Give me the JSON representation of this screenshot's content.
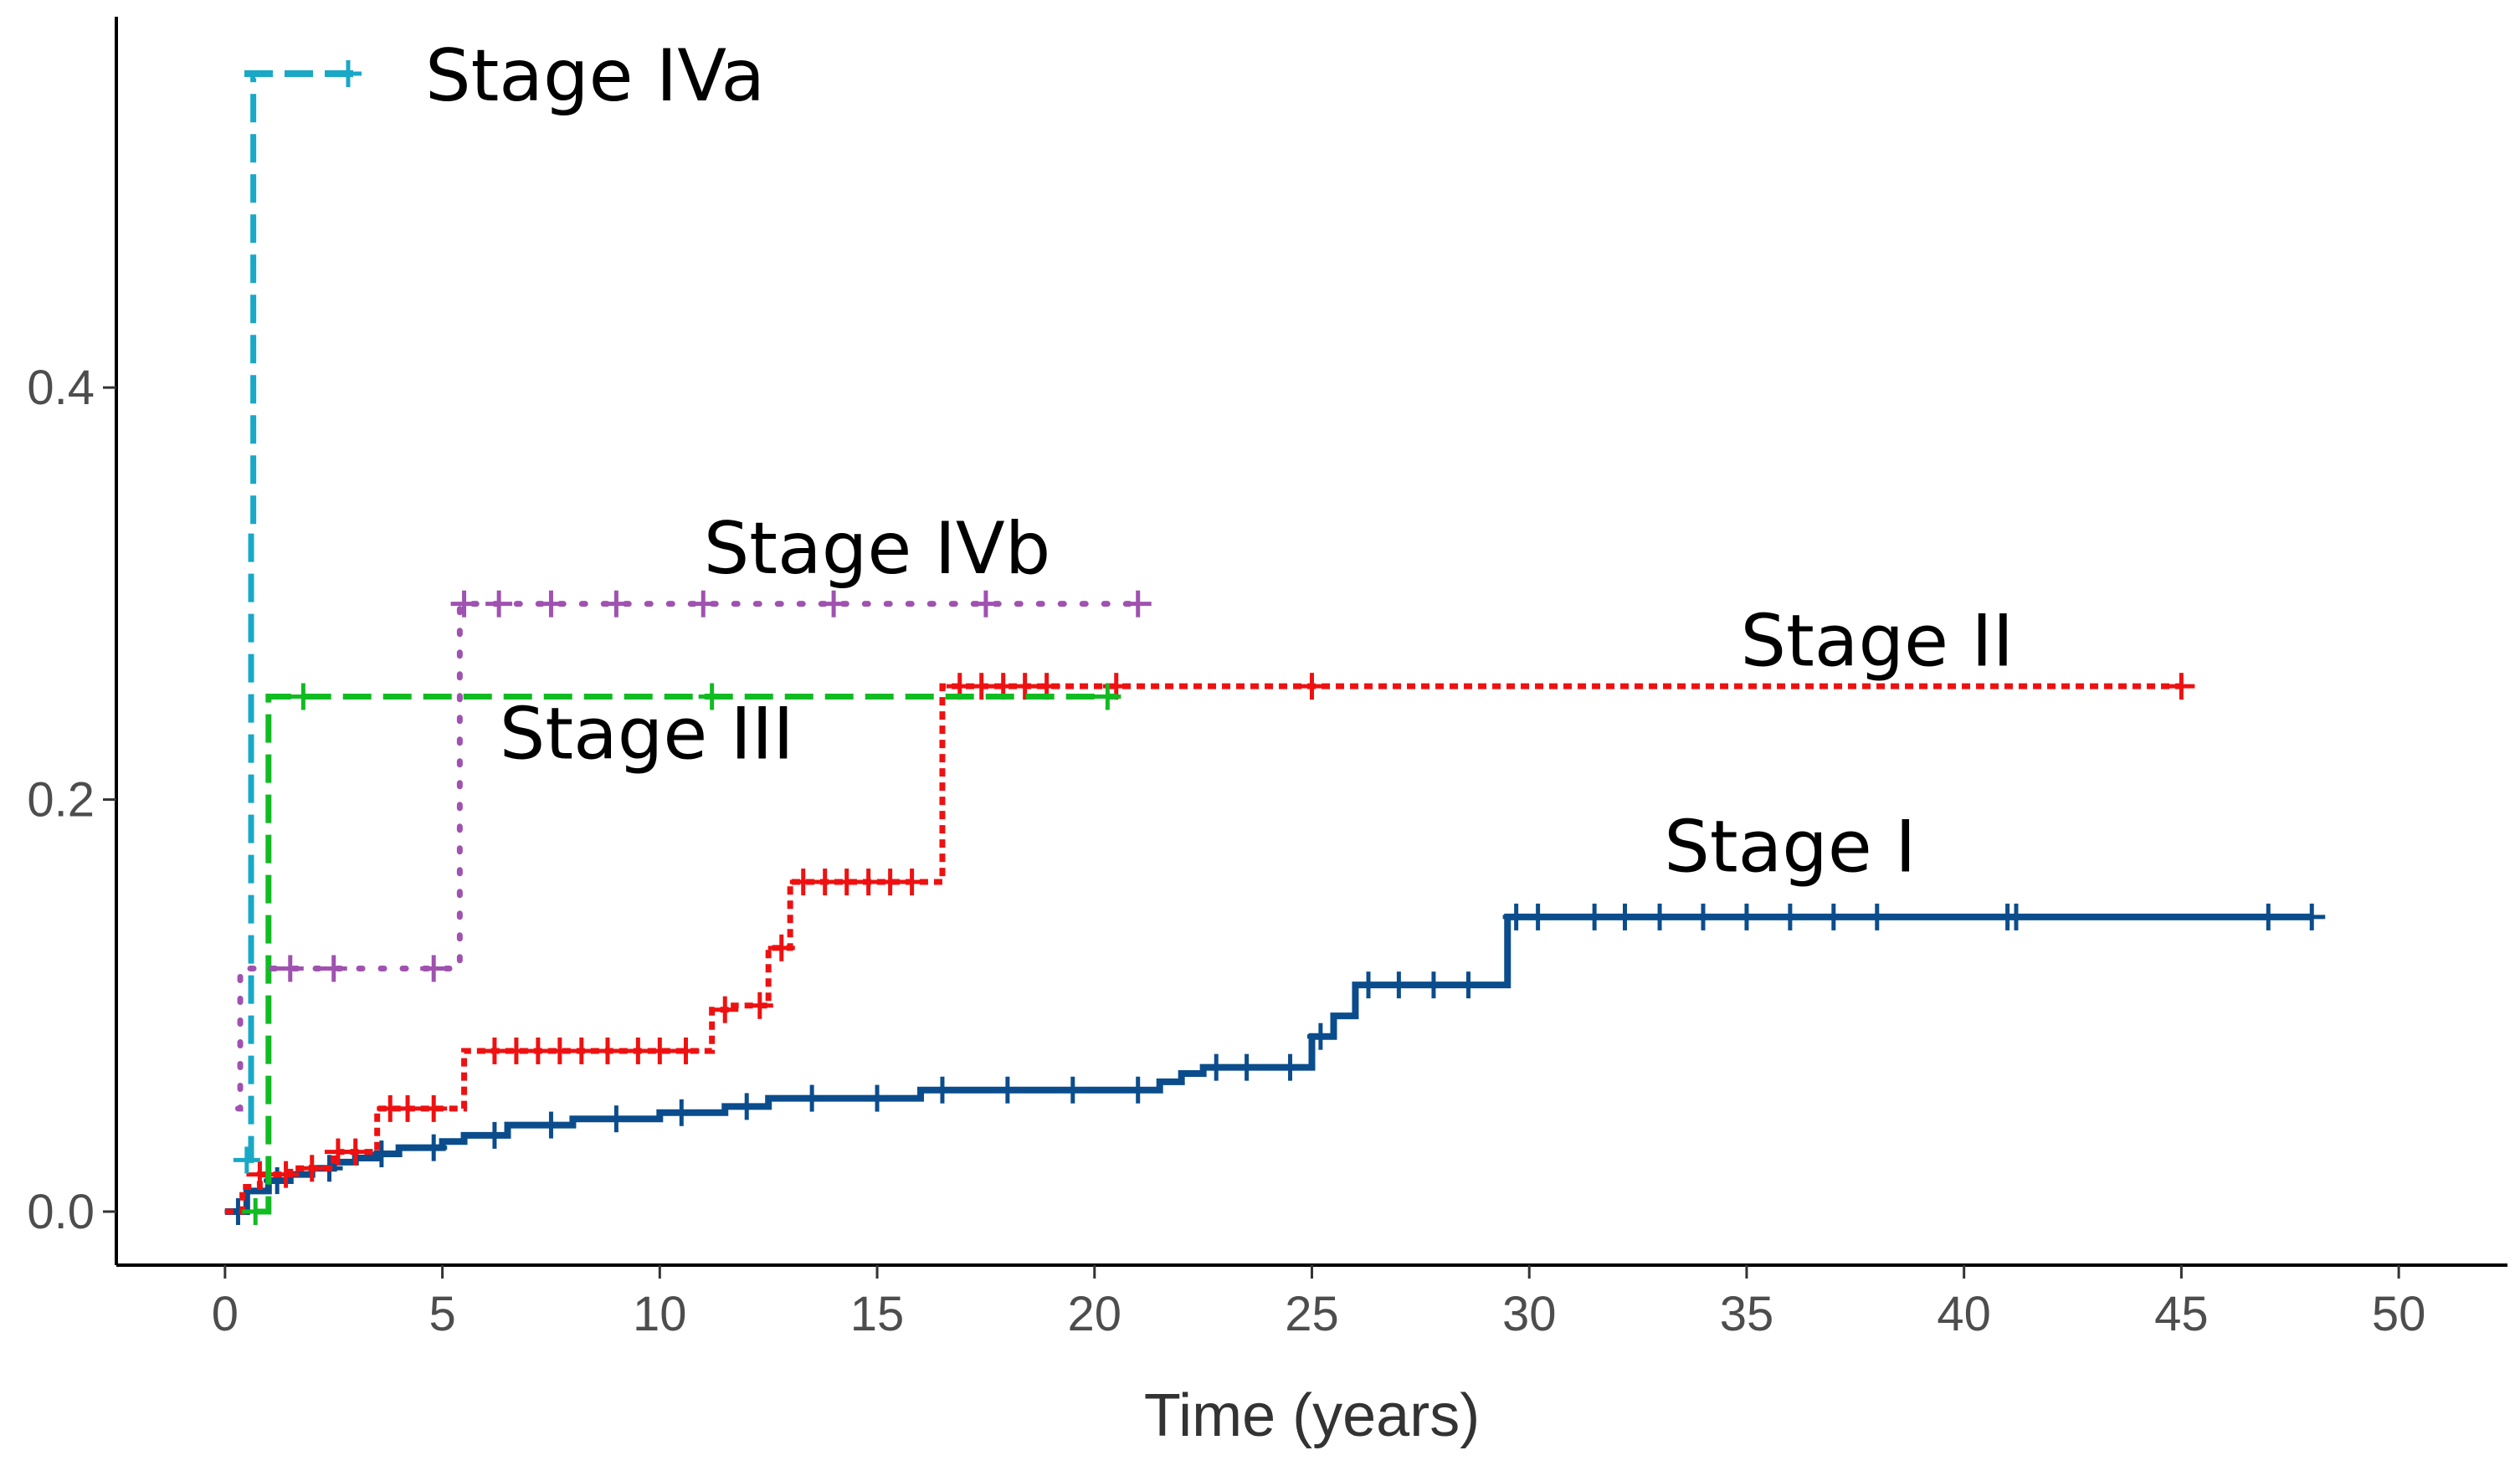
{
  "chart_data": {
    "type": "line",
    "title": "",
    "xlabel": "Time (years)",
    "ylabel": "",
    "xlim": [
      -2.5,
      52.5
    ],
    "ylim": [
      -0.026,
      0.58
    ],
    "xticks": [
      0,
      5,
      10,
      15,
      20,
      25,
      30,
      35,
      40,
      45,
      50
    ],
    "yticks": [
      0.0,
      0.2,
      0.4
    ],
    "ytick_labels": [
      "0.0",
      "0.2",
      "0.4"
    ],
    "grid": false,
    "series": [
      {
        "name": "Stage I",
        "label": "Stage I",
        "color": "#0b4d8c",
        "dash": "solid",
        "x": [
          0,
          0.5,
          1,
          1.5,
          2,
          2.5,
          3,
          3.5,
          4,
          5,
          5.5,
          6.5,
          8,
          10,
          11.5,
          12.5,
          16,
          21.5,
          22,
          22.5,
          25,
          25.5,
          26,
          29.5,
          48
        ],
        "y": [
          0.0,
          0.01,
          0.015,
          0.018,
          0.021,
          0.024,
          0.026,
          0.028,
          0.031,
          0.034,
          0.037,
          0.042,
          0.045,
          0.048,
          0.051,
          0.055,
          0.059,
          0.063,
          0.067,
          0.07,
          0.085,
          0.095,
          0.11,
          0.143,
          0.143
        ],
        "censor_x": [
          0.3,
          1.2,
          2.4,
          3.6,
          4.8,
          6.2,
          7.5,
          9,
          10.5,
          12,
          13.5,
          15,
          16.5,
          18,
          19.5,
          21,
          22.8,
          23.5,
          24.5,
          25.2,
          26.3,
          27,
          27.8,
          28.6,
          29.7,
          30.2,
          31.5,
          32.2,
          33,
          34,
          35,
          36,
          37,
          38,
          41,
          41.2,
          47,
          48
        ],
        "label_pos": [
          36,
          0.165
        ]
      },
      {
        "name": "Stage II",
        "label": "Stage II",
        "color": "#ee1111",
        "dash": "10 7",
        "x": [
          0,
          0.4,
          0.8,
          1.5,
          2.5,
          3.5,
          5.5,
          6,
          11.2,
          11.7,
          12.5,
          13,
          16.5,
          45
        ],
        "y": [
          0.0,
          0.012,
          0.018,
          0.021,
          0.029,
          0.05,
          0.078,
          0.078,
          0.098,
          0.1,
          0.128,
          0.16,
          0.255,
          0.255
        ],
        "censor_x": [
          0.8,
          1.4,
          2,
          2.6,
          3,
          3.8,
          4.2,
          4.8,
          6.2,
          6.7,
          7.2,
          7.7,
          8.2,
          8.8,
          9.5,
          10,
          10.6,
          11.5,
          12.3,
          12.8,
          13.3,
          13.8,
          14.3,
          14.8,
          15.3,
          15.8,
          16.9,
          17.4,
          17.9,
          18.4,
          18.9,
          20.5,
          25,
          45
        ],
        "label_pos": [
          38,
          0.265
        ]
      },
      {
        "name": "Stage III",
        "label": "Stage III",
        "color": "#11bb22",
        "dash": "34 14",
        "x": [
          0.7,
          0.95,
          1.0,
          20.5
        ],
        "y": [
          0.0,
          0.0,
          0.25,
          0.25
        ],
        "censor_x": [
          0.7,
          1.8,
          11.2,
          20.3
        ],
        "label_pos": [
          9.7,
          0.22
        ]
      },
      {
        "name": "Stage IVa",
        "label": "Stage IVa",
        "color": "#19a8c6",
        "dash": "34 14",
        "x": [
          0.5,
          0.55,
          0.6,
          0.65,
          0.7
        ],
        "y": [
          0.025,
          0.025,
          0.333,
          0.55,
          0.55
        ],
        "censor_x": [
          0.5
        ],
        "label_pos": null
      },
      {
        "name": "Stage IVb",
        "label": "Stage IVb",
        "color": "#a052b0",
        "dash": "4 22",
        "x": [
          0.3,
          0.35,
          5.3,
          5.4,
          21
        ],
        "y": [
          0.05,
          0.118,
          0.118,
          0.295,
          0.295
        ],
        "censor_x": [
          1.5,
          2.5,
          4.8,
          5.5,
          6.3,
          7.5,
          9,
          11,
          14,
          17.5,
          21
        ],
        "label_pos": [
          15,
          0.31
        ]
      }
    ],
    "legend": {
      "entries": [
        "Stage IVa"
      ],
      "placement": "top-left"
    }
  }
}
